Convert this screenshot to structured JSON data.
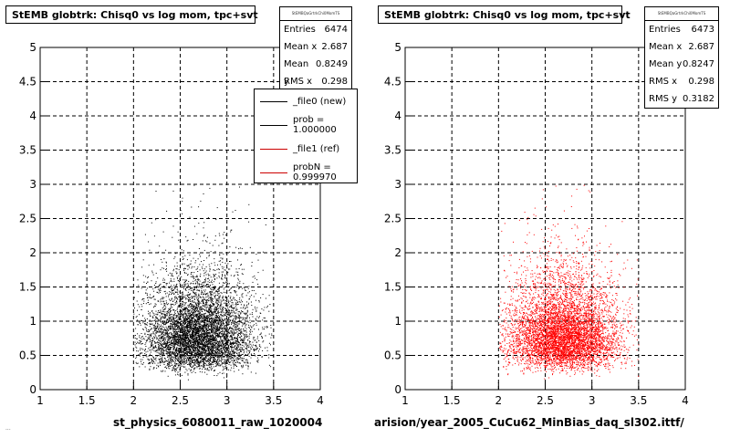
{
  "chart_data": [
    {
      "type": "scatter",
      "title": "StEMB globtrk: Chisq0 vs log mom, tpc+svt",
      "xlabel": "st_physics_6080011_raw_1020004",
      "ylabel": "",
      "xlim": [
        1,
        4
      ],
      "ylim": [
        0,
        5
      ],
      "xticks": [
        "1",
        "1.5",
        "2",
        "2.5",
        "3",
        "3.5",
        "4"
      ],
      "yticks": [
        "0",
        "0.5",
        "1",
        "1.5",
        "2",
        "2.5",
        "3",
        "3.5",
        "4",
        "4.5",
        "5"
      ],
      "grid": true,
      "marker_color": "#000000",
      "distribution": {
        "x_range": [
          2.0,
          3.5
        ],
        "x_center": 2.687,
        "y_center": 0.8249,
        "x_rms": 0.298,
        "y_rms": 0.32
      },
      "stats": {
        "header": "StEMBQaGrtrkChi0MomTS",
        "rows": [
          {
            "label": "Entries",
            "value": "6474"
          },
          {
            "label": "Mean x",
            "value": "2.687"
          },
          {
            "label": "Mean y",
            "value": "0.8249"
          },
          {
            "label": "RMS x",
            "value": "0.298"
          }
        ]
      },
      "legend": [
        {
          "label": "_file0 (new)",
          "color": "#000000"
        },
        {
          "label": "prob = 1.000000",
          "color": "#000000"
        },
        {
          "label": "_file1 (ref)",
          "color": "#cc0000"
        },
        {
          "label": "probN = 0.999970",
          "color": "#cc0000"
        }
      ],
      "footnote": "..."
    },
    {
      "type": "scatter",
      "title": "StEMB globtrk: Chisq0 vs log mom, tpc+svt",
      "xlabel": "arision/year_2005_CuCu62_MinBias_daq_sl302.ittf/",
      "ylabel": "",
      "xlim": [
        1,
        4
      ],
      "ylim": [
        0,
        5
      ],
      "xticks": [
        "1",
        "1.5",
        "2",
        "2.5",
        "3",
        "3.5",
        "4"
      ],
      "yticks": [
        "0",
        "0.5",
        "1",
        "1.5",
        "2",
        "2.5",
        "3",
        "3.5",
        "4",
        "4.5",
        "5"
      ],
      "grid": true,
      "marker_color": "#ff0000",
      "distribution": {
        "x_range": [
          2.0,
          3.5
        ],
        "x_center": 2.687,
        "y_center": 0.8247,
        "x_rms": 0.298,
        "y_rms": 0.3182
      },
      "stats": {
        "header": "StEMBQaGrtrkChi0MomTS",
        "rows": [
          {
            "label": "Entries",
            "value": "6473"
          },
          {
            "label": "Mean x",
            "value": "2.687"
          },
          {
            "label": "Mean y",
            "value": "0.8247"
          },
          {
            "label": "RMS x",
            "value": "0.298"
          },
          {
            "label": "RMS y",
            "value": "0.3182"
          }
        ]
      }
    }
  ]
}
